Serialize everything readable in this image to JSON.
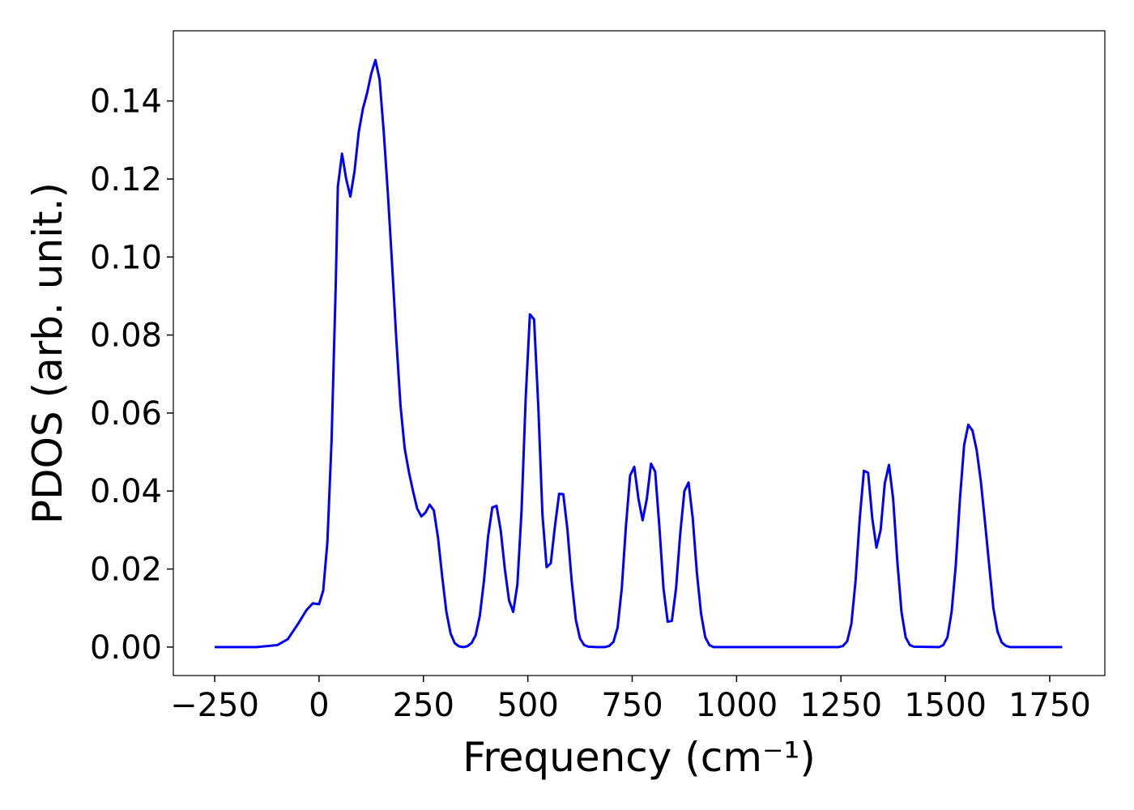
{
  "chart_data": {
    "type": "line",
    "xlabel": "Frequency (cm⁻¹)",
    "ylabel": "PDOS (arb. unit.)",
    "xlim": [
      -349,
      1882
    ],
    "ylim": [
      -0.0073,
      0.158
    ],
    "xticks": [
      {
        "value": -250,
        "label": "−250"
      },
      0,
      250,
      500,
      750,
      1000,
      1250,
      1500,
      1750
    ],
    "yticks": [
      {
        "value": 0,
        "label": "0.00"
      },
      {
        "value": 0.02,
        "label": "0.02"
      },
      {
        "value": 0.04,
        "label": "0.04"
      },
      {
        "value": 0.06,
        "label": "0.06"
      },
      {
        "value": 0.08,
        "label": "0.08"
      },
      {
        "value": 0.1,
        "label": "0.10"
      },
      {
        "value": 0.12,
        "label": "0.12"
      },
      {
        "value": 0.14,
        "label": "0.14"
      }
    ],
    "grid": false,
    "series": [
      {
        "color": "#0000ff",
        "x": [
          -250,
          -150,
          -100,
          -75,
          -50,
          -30,
          -15,
          0,
          10,
          20,
          30,
          40,
          45,
          55,
          65,
          75,
          85,
          95,
          105,
          115,
          125,
          135,
          145,
          155,
          165,
          175,
          185,
          195,
          205,
          215,
          225,
          235,
          245,
          255,
          265,
          275,
          285,
          295,
          305,
          315,
          325,
          335,
          345,
          355,
          365,
          375,
          385,
          395,
          405,
          415,
          425,
          435,
          445,
          455,
          465,
          475,
          485,
          495,
          505,
          515,
          525,
          535,
          545,
          555,
          565,
          575,
          585,
          595,
          605,
          615,
          625,
          635,
          645,
          665,
          685,
          695,
          705,
          715,
          725,
          735,
          745,
          755,
          765,
          775,
          785,
          795,
          805,
          815,
          825,
          835,
          845,
          855,
          865,
          875,
          885,
          895,
          905,
          915,
          925,
          935,
          945,
          1245,
          1255,
          1265,
          1275,
          1285,
          1295,
          1305,
          1315,
          1325,
          1335,
          1345,
          1355,
          1365,
          1375,
          1385,
          1395,
          1405,
          1415,
          1425,
          1485,
          1495,
          1505,
          1515,
          1525,
          1535,
          1545,
          1555,
          1565,
          1575,
          1585,
          1595,
          1605,
          1615,
          1625,
          1635,
          1645,
          1655,
          1780
        ],
        "values": [
          0,
          0,
          0.0005,
          0.002,
          0.006,
          0.0095,
          0.0112,
          0.011,
          0.0145,
          0.027,
          0.053,
          0.093,
          0.118,
          0.1265,
          0.12,
          0.1155,
          0.122,
          0.132,
          0.138,
          0.142,
          0.147,
          0.1505,
          0.1455,
          0.132,
          0.116,
          0.098,
          0.079,
          0.062,
          0.051,
          0.045,
          0.04,
          0.0355,
          0.0335,
          0.0345,
          0.0365,
          0.035,
          0.028,
          0.018,
          0.009,
          0.0035,
          0.001,
          0.0002,
          0,
          0.0002,
          0.001,
          0.003,
          0.008,
          0.017,
          0.0285,
          0.0358,
          0.0362,
          0.03,
          0.02,
          0.012,
          0.009,
          0.016,
          0.035,
          0.064,
          0.0853,
          0.084,
          0.062,
          0.034,
          0.0205,
          0.0215,
          0.031,
          0.0393,
          0.0392,
          0.03,
          0.017,
          0.007,
          0.0022,
          0.0005,
          0.0001,
          0,
          0,
          0.0003,
          0.0013,
          0.005,
          0.015,
          0.031,
          0.044,
          0.0462,
          0.038,
          0.0325,
          0.038,
          0.047,
          0.045,
          0.031,
          0.015,
          0.0065,
          0.0067,
          0.015,
          0.029,
          0.04,
          0.0422,
          0.033,
          0.019,
          0.0085,
          0.0025,
          0.0005,
          0,
          0,
          0.0003,
          0.0015,
          0.006,
          0.017,
          0.033,
          0.0452,
          0.0447,
          0.033,
          0.0255,
          0.03,
          0.042,
          0.0467,
          0.038,
          0.022,
          0.009,
          0.0025,
          0.0005,
          0.0001,
          0,
          0.0005,
          0.0025,
          0.009,
          0.021,
          0.038,
          0.0518,
          0.057,
          0.0555,
          0.0505,
          0.0425,
          0.032,
          0.021,
          0.01,
          0.004,
          0.0012,
          0.0003,
          0,
          0
        ]
      }
    ]
  }
}
